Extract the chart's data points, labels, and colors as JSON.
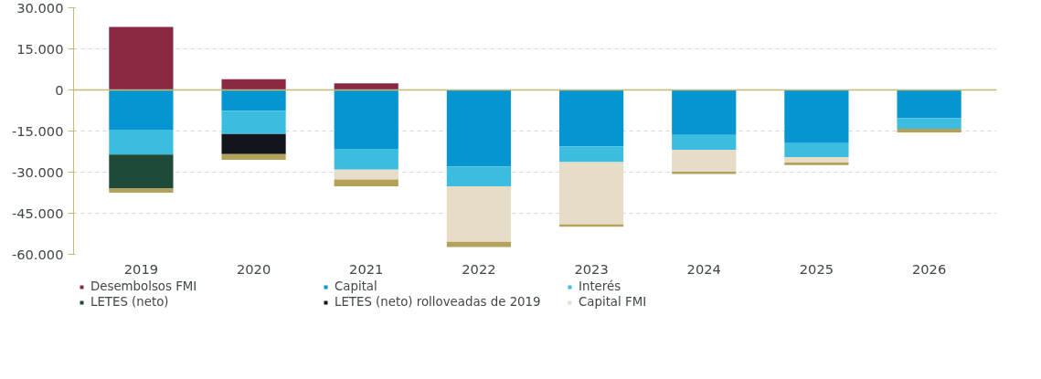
{
  "chart_data": {
    "type": "bar",
    "stacked": true,
    "categories": [
      "2019",
      "2020",
      "2021",
      "2022",
      "2023",
      "2024",
      "2025",
      "2026"
    ],
    "series": [
      {
        "name": "Desembolsos FMI",
        "color": "#8b2842",
        "values": [
          23000,
          3900,
          2400,
          null,
          null,
          null,
          null,
          null
        ]
      },
      {
        "name": "Capital",
        "color": "#0596d2",
        "values": [
          -14500,
          -7600,
          -21500,
          -27900,
          -20600,
          -16400,
          -19400,
          -10300
        ]
      },
      {
        "name": "Interés",
        "color": "#3cbde0",
        "values": [
          -9100,
          -8500,
          -7600,
          -7300,
          -5700,
          -5400,
          -5100,
          -3900
        ]
      },
      {
        "name": "LETES (neto)",
        "color": "#1e4a38",
        "values": [
          -12400,
          null,
          null,
          null,
          null,
          null,
          null,
          null
        ]
      },
      {
        "name": "LETES (neto) rolloveadas de 2019",
        "color": "#12151c",
        "values": [
          null,
          -7300,
          null,
          null,
          null,
          null,
          null,
          null
        ]
      },
      {
        "name": "Capital FMI",
        "color": "#e6dcc8",
        "values": [
          null,
          null,
          -3600,
          -20200,
          -22800,
          -8000,
          -2000,
          null
        ]
      },
      {
        "color": "#b5a25a",
        "values": [
          -1500,
          -2100,
          -2500,
          -1900,
          -800,
          -900,
          -900,
          -1300
        ]
      }
    ],
    "ylim": [
      -60000,
      30000
    ],
    "yticks": [
      {
        "value": -60000,
        "label": "-60.000"
      },
      {
        "value": -45000,
        "label": "-45.000"
      },
      {
        "value": -30000,
        "label": "-30.000"
      },
      {
        "value": -15000,
        "label": "-15.000"
      },
      0,
      {
        "value": 15000,
        "label": "15.000"
      },
      {
        "value": 30000,
        "label": "30.000"
      }
    ],
    "ref_lines": [
      {
        "axis": "y",
        "value": 0,
        "color": "#c8b878"
      }
    ],
    "grid": "y",
    "legend": "bottom"
  }
}
